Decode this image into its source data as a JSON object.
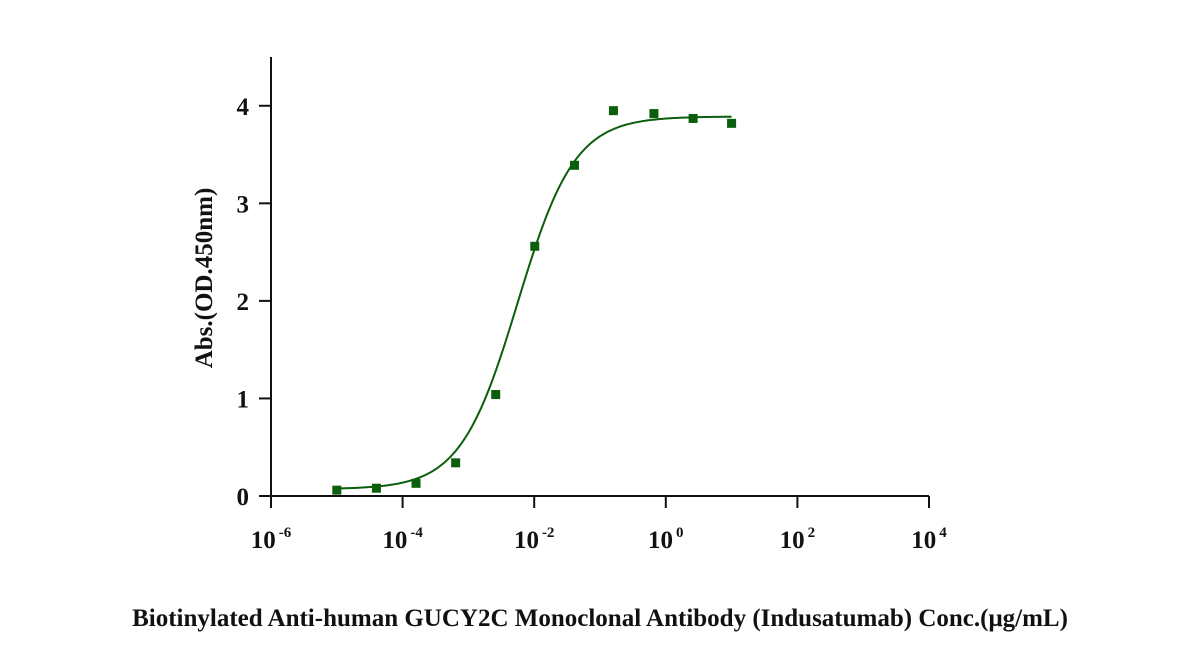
{
  "chart_data": {
    "type": "scatter",
    "title": "",
    "xlabel": "Biotinylated Anti-human GUCY2C Monoclonal Antibody (Indusatumab) Conc.(μg/mL)",
    "ylabel": "Abs.(OD.450nm)",
    "x_scale": "log10",
    "xlim": [
      1e-06,
      10000
    ],
    "ylim": [
      0,
      4.5
    ],
    "x_ticks": [
      {
        "value": 1e-06,
        "base": "10",
        "exp": "-6"
      },
      {
        "value": 0.0001,
        "base": "10",
        "exp": "-4"
      },
      {
        "value": 0.01,
        "base": "10",
        "exp": "-2"
      },
      {
        "value": 1,
        "base": "10",
        "exp": "0"
      },
      {
        "value": 100,
        "base": "10",
        "exp": "2"
      },
      {
        "value": 10000,
        "base": "10",
        "exp": "4"
      }
    ],
    "y_ticks": [
      {
        "value": 0,
        "label": "0"
      },
      {
        "value": 1,
        "label": "1"
      },
      {
        "value": 2,
        "label": "2"
      },
      {
        "value": 3,
        "label": "3"
      },
      {
        "value": 4,
        "label": "4"
      }
    ],
    "grid": false,
    "color": "#0b5e0b",
    "series": [
      {
        "points": [
          {
            "x": 1e-05,
            "y": 0.06
          },
          {
            "x": 4e-05,
            "y": 0.08
          },
          {
            "x": 0.00016,
            "y": 0.13
          },
          {
            "x": 0.00064,
            "y": 0.34
          },
          {
            "x": 0.0026,
            "y": 1.04
          },
          {
            "x": 0.0102,
            "y": 2.56
          },
          {
            "x": 0.041,
            "y": 3.39
          },
          {
            "x": 0.16,
            "y": 3.95
          },
          {
            "x": 0.66,
            "y": 3.92
          },
          {
            "x": 2.6,
            "y": 3.87
          },
          {
            "x": 10,
            "y": 3.82
          }
        ],
        "fit": {
          "model": "4PL",
          "bottom": 0.07,
          "top": 3.89,
          "ec50": 0.0056,
          "hill": 1.0,
          "x_range": [
            1e-05,
            10
          ]
        }
      }
    ]
  }
}
